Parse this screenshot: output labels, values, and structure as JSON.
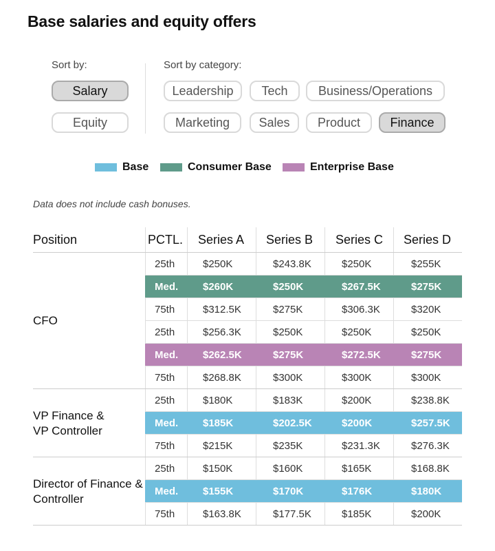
{
  "title": "Base salaries and equity offers",
  "sort_by": {
    "label": "Sort by:",
    "options": [
      "Salary",
      "Equity"
    ],
    "active": "Salary"
  },
  "sort_by_category": {
    "label": "Sort by category:",
    "options": [
      "Leadership",
      "Tech",
      "Business/Operations",
      "Marketing",
      "Sales",
      "Product",
      "Finance"
    ],
    "active": "Finance"
  },
  "colors": {
    "base": "#6fbedd",
    "consumer_base": "#5f9b8a",
    "enterprise_base": "#b984b5"
  },
  "note": "Data does not include cash bonuses.",
  "chart_data": {
    "type": "table",
    "legend": [
      {
        "name": "Base",
        "color": "#6fbedd"
      },
      {
        "name": "Consumer Base",
        "color": "#5f9b8a"
      },
      {
        "name": "Enterprise Base",
        "color": "#b984b5"
      }
    ],
    "columns": [
      "Position",
      "PCTL.",
      "Series A",
      "Series B",
      "Series C",
      "Series D"
    ],
    "positions": [
      {
        "name": "CFO",
        "groups": [
          {
            "type": "Consumer Base",
            "rows": [
              {
                "pctl": "25th",
                "values": [
                  "$250K",
                  "$243.8K",
                  "$250K",
                  "$255K"
                ]
              },
              {
                "pctl": "Med.",
                "values": [
                  "$260K",
                  "$250K",
                  "$267.5K",
                  "$275K"
                ]
              },
              {
                "pctl": "75th",
                "values": [
                  "$312.5K",
                  "$275K",
                  "$306.3K",
                  "$320K"
                ]
              }
            ]
          },
          {
            "type": "Enterprise Base",
            "rows": [
              {
                "pctl": "25th",
                "values": [
                  "$256.3K",
                  "$250K",
                  "$250K",
                  "$250K"
                ]
              },
              {
                "pctl": "Med.",
                "values": [
                  "$262.5K",
                  "$275K",
                  "$272.5K",
                  "$275K"
                ]
              },
              {
                "pctl": "75th",
                "values": [
                  "$268.8K",
                  "$300K",
                  "$300K",
                  "$300K"
                ]
              }
            ]
          }
        ]
      },
      {
        "name": "VP Finance & VP Controller",
        "groups": [
          {
            "type": "Base",
            "rows": [
              {
                "pctl": "25th",
                "values": [
                  "$180K",
                  "$183K",
                  "$200K",
                  "$238.8K"
                ]
              },
              {
                "pctl": "Med.",
                "values": [
                  "$185K",
                  "$202.5K",
                  "$200K",
                  "$257.5K"
                ]
              },
              {
                "pctl": "75th",
                "values": [
                  "$215K",
                  "$235K",
                  "$231.3K",
                  "$276.3K"
                ]
              }
            ]
          }
        ]
      },
      {
        "name": "Director of Finance & Controller",
        "groups": [
          {
            "type": "Base",
            "rows": [
              {
                "pctl": "25th",
                "values": [
                  "$150K",
                  "$160K",
                  "$165K",
                  "$168.8K"
                ]
              },
              {
                "pctl": "Med.",
                "values": [
                  "$155K",
                  "$170K",
                  "$176K",
                  "$180K"
                ]
              },
              {
                "pctl": "75th",
                "values": [
                  "$163.8K",
                  "$177.5K",
                  "$185K",
                  "$200K"
                ]
              }
            ]
          }
        ]
      }
    ]
  }
}
